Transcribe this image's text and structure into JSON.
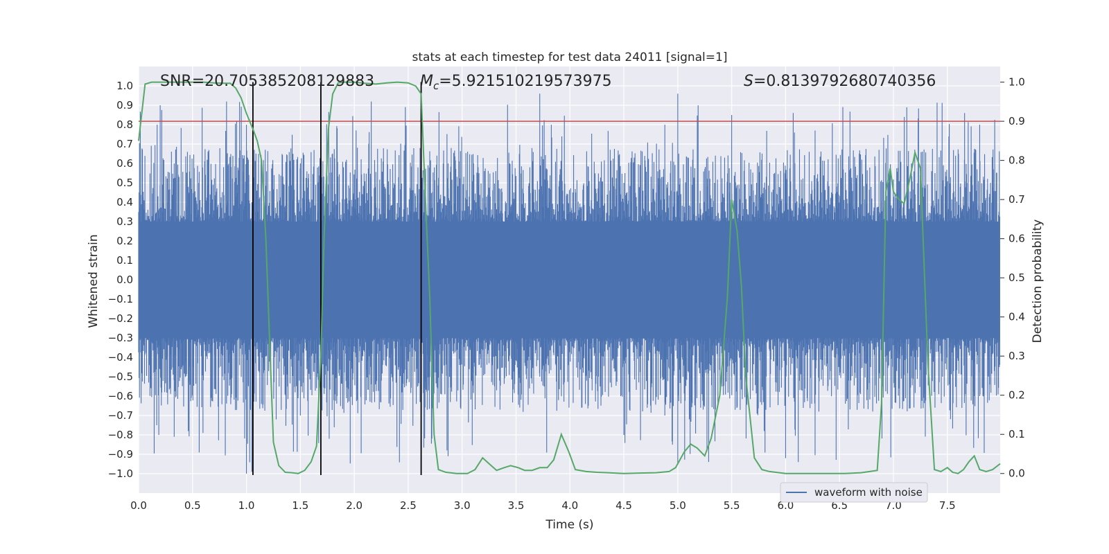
{
  "chart_data": {
    "type": "line",
    "title": "stats at each timestep for test data 24011 [signal=1]",
    "xlabel": "Time (s)",
    "ylabel": "Whitened strain",
    "y2label": "Detection probability",
    "xlim": [
      0.0,
      7.99
    ],
    "ylim": [
      -1.1,
      1.1
    ],
    "y2lim": [
      -0.05,
      1.04
    ],
    "x_ticks": [
      0.0,
      0.5,
      1.0,
      1.5,
      2.0,
      2.5,
      3.0,
      3.5,
      4.0,
      4.5,
      5.0,
      5.5,
      6.0,
      6.5,
      7.0,
      7.5
    ],
    "x_tick_labels": [
      "0.0",
      "0.5",
      "1.0",
      "1.5",
      "2.0",
      "2.5",
      "3.0",
      "3.5",
      "4.0",
      "4.5",
      "5.0",
      "5.5",
      "6.0",
      "6.5",
      "7.0",
      "7.5"
    ],
    "y_ticks": [
      1.0,
      0.9,
      0.8,
      0.7,
      0.6,
      0.5,
      0.4,
      0.3,
      0.2,
      0.1,
      0.0,
      -0.1,
      -0.2,
      -0.3,
      -0.4,
      -0.5,
      -0.6,
      -0.7,
      -0.8,
      -0.9,
      -1.0
    ],
    "y_tick_labels": [
      "1.0",
      "0.9",
      "0.8",
      "0.7",
      "0.6",
      "0.5",
      "0.4",
      "0.3",
      "0.2",
      "0.1",
      "0.0",
      "−0.1",
      "−0.2",
      "−0.3",
      "−0.4",
      "−0.5",
      "−0.6",
      "−0.7",
      "−0.8",
      "−0.9",
      "−1.0"
    ],
    "y2_ticks": [
      1.0,
      0.9,
      0.8,
      0.7,
      0.6,
      0.5,
      0.4,
      0.3,
      0.2,
      0.1,
      0.0
    ],
    "y2_tick_labels": [
      "1.0",
      "0.9",
      "0.8",
      "0.7",
      "0.6",
      "0.5",
      "0.4",
      "0.3",
      "0.2",
      "0.1",
      "0.0"
    ],
    "annotations": {
      "snr": "SNR=20.705385208129883",
      "mc_symbol": "M",
      "mc_subscript": "c",
      "mc_value": "=5.921510219573975",
      "s_symbol": "S",
      "s_value": "=0.8139792680740356"
    },
    "legend": {
      "label": "waveform with noise",
      "position": "lower-right"
    },
    "threshold": {
      "y2": 0.9,
      "color": "#c44e52"
    },
    "vertical_markers": [
      1.06,
      1.69,
      2.62
    ],
    "colors": {
      "waveform": "#4c72b0",
      "probability": "#55a868",
      "markers": "#000000",
      "background": "#eaeaf2",
      "grid": "#ffffff"
    },
    "series": [
      {
        "name": "Detection probability",
        "axis": "right",
        "x": [
          0.0,
          0.06,
          0.12,
          0.2,
          0.3,
          0.4,
          0.5,
          0.6,
          0.7,
          0.8,
          0.85,
          0.9,
          0.95,
          1.0,
          1.03,
          1.06,
          1.1,
          1.14,
          1.18,
          1.22,
          1.25,
          1.3,
          1.36,
          1.42,
          1.48,
          1.54,
          1.6,
          1.65,
          1.69,
          1.72,
          1.76,
          1.8,
          1.85,
          1.9,
          2.0,
          2.1,
          2.2,
          2.3,
          2.4,
          2.5,
          2.57,
          2.62,
          2.66,
          2.7,
          2.74,
          2.78,
          2.85,
          2.95,
          3.05,
          3.12,
          3.19,
          3.25,
          3.32,
          3.39,
          3.45,
          3.52,
          3.58,
          3.65,
          3.72,
          3.79,
          3.85,
          3.92,
          3.99,
          4.05,
          4.15,
          4.25,
          4.35,
          4.5,
          4.65,
          4.8,
          4.92,
          4.98,
          5.06,
          5.12,
          5.18,
          5.25,
          5.31,
          5.39,
          5.46,
          5.5,
          5.55,
          5.59,
          5.63,
          5.71,
          5.78,
          5.85,
          6.0,
          6.2,
          6.4,
          6.55,
          6.7,
          6.78,
          6.85,
          6.89,
          6.93,
          6.97,
          7.0,
          7.05,
          7.1,
          7.15,
          7.2,
          7.25,
          7.32,
          7.38,
          7.44,
          7.5,
          7.55,
          7.6,
          7.65,
          7.7,
          7.75,
          7.8,
          7.86,
          7.92,
          7.99
        ],
        "y": [
          0.85,
          0.995,
          1.0,
          1.0,
          1.0,
          1.0,
          1.0,
          1.0,
          0.998,
          0.997,
          0.997,
          0.985,
          0.96,
          0.92,
          0.9,
          0.88,
          0.85,
          0.8,
          0.6,
          0.3,
          0.08,
          0.02,
          0.003,
          0.002,
          0.0,
          0.008,
          0.03,
          0.07,
          0.3,
          0.6,
          0.88,
          0.97,
          0.998,
          1.0,
          1.0,
          0.997,
          0.995,
          0.998,
          1.0,
          0.998,
          0.99,
          0.97,
          0.7,
          0.45,
          0.1,
          0.01,
          0.003,
          0.0,
          0.0,
          0.01,
          0.04,
          0.025,
          0.008,
          0.015,
          0.02,
          0.015,
          0.008,
          0.008,
          0.015,
          0.015,
          0.035,
          0.1,
          0.055,
          0.01,
          0.005,
          0.003,
          0.002,
          0.0,
          0.001,
          0.002,
          0.005,
          0.015,
          0.055,
          0.075,
          0.065,
          0.045,
          0.09,
          0.2,
          0.45,
          0.7,
          0.62,
          0.48,
          0.25,
          0.04,
          0.01,
          0.005,
          0.0,
          0.0,
          0.0,
          0.0,
          0.002,
          0.005,
          0.008,
          0.18,
          0.72,
          0.78,
          0.72,
          0.7,
          0.69,
          0.75,
          0.82,
          0.78,
          0.28,
          0.01,
          0.005,
          0.015,
          0.003,
          0.0,
          0.01,
          0.03,
          0.045,
          0.01,
          0.005,
          0.01,
          0.025
        ]
      }
    ],
    "waveform": {
      "name": "waveform with noise",
      "axis": "left",
      "samples": 2048,
      "envelope_positive_typical": [
        0.3,
        0.5
      ],
      "envelope_negative_typical": [
        -0.3,
        -0.5
      ],
      "max": 0.96,
      "min": -1.0
    }
  }
}
